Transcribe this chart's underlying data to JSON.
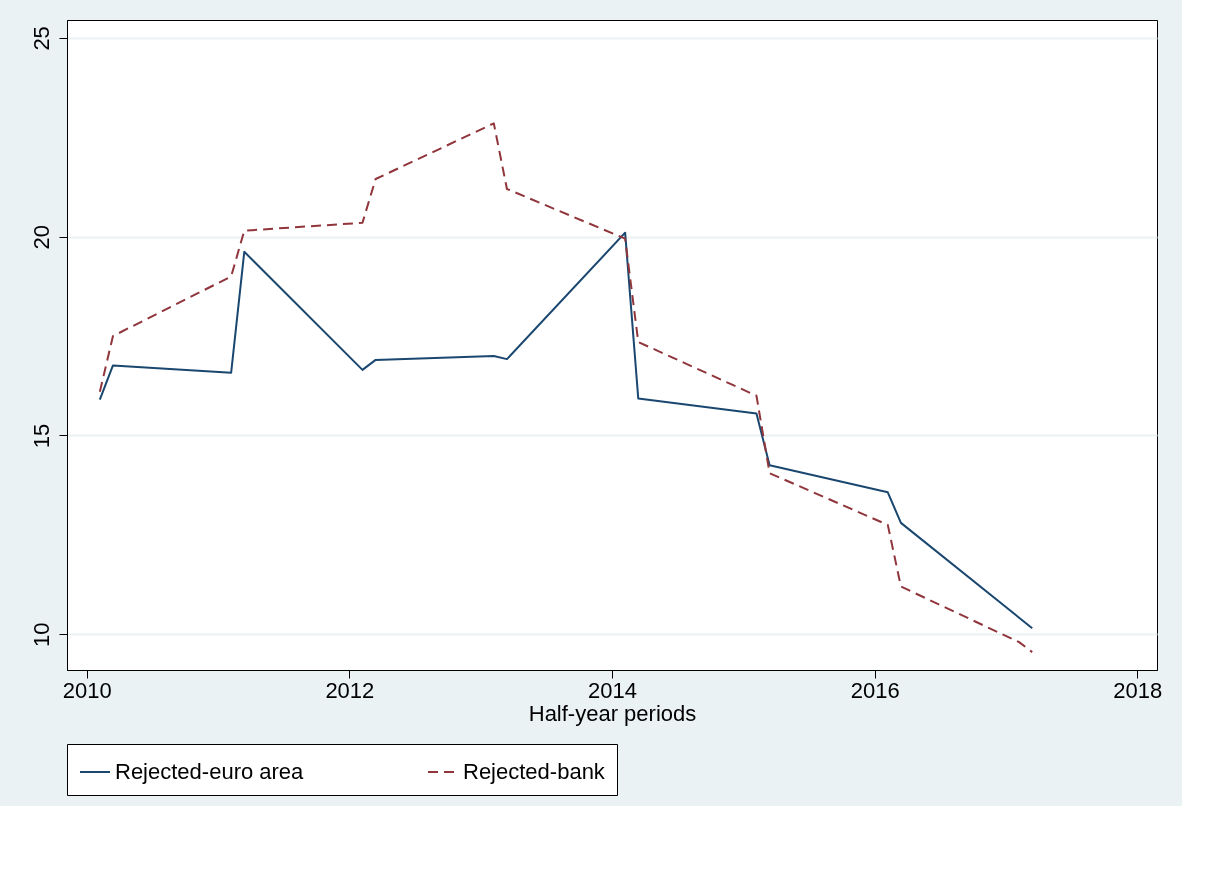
{
  "chart_data": {
    "type": "line",
    "xlabel": "Half-year periods",
    "x": [
      2010.1,
      2010.2,
      2011.1,
      2011.2,
      2012.1,
      2012.2,
      2013.1,
      2013.2,
      2014.1,
      2014.2,
      2015.1,
      2015.2,
      2016.1,
      2016.2,
      2017.1,
      2017.2
    ],
    "series": [
      {
        "name": "Rejected-euro area",
        "color": "#1a476f",
        "line_style": "solid",
        "values": [
          15.9,
          16.76,
          16.58,
          19.62,
          16.65,
          16.9,
          17.0,
          16.92,
          20.1,
          15.93,
          15.55,
          14.25,
          13.57,
          12.8,
          null,
          10.15
        ]
      },
      {
        "name": "Rejected-bank",
        "color": "#90353b",
        "line_style": "dashed",
        "values": [
          16.1,
          17.5,
          19.0,
          20.15,
          20.35,
          21.45,
          22.85,
          21.2,
          19.95,
          17.35,
          16.0,
          14.05,
          12.75,
          11.2,
          9.8,
          9.55
        ]
      }
    ],
    "xlim": [
      2009.85,
      2018.15
    ],
    "xticks": [
      2010,
      2012,
      2014,
      2016,
      2018
    ],
    "ylim": [
      9.1,
      25.45
    ],
    "yticks": [
      10,
      15,
      20,
      25
    ],
    "grid": "y",
    "legend": "bottom",
    "marker": "none"
  }
}
